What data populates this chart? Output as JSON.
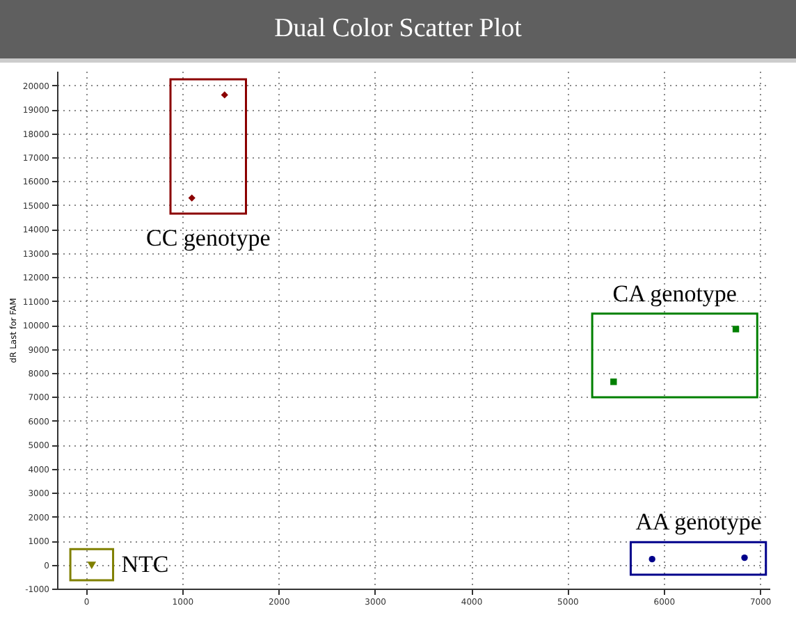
{
  "chart_data": {
    "type": "scatter",
    "title": "Dual Color Scatter Plot",
    "ylabel": "dR Last for FAM",
    "xlim": [
      -300,
      7100
    ],
    "ylim": [
      -1000,
      20600
    ],
    "xticks": [
      0,
      1000,
      2000,
      3000,
      4000,
      5000,
      6000,
      7000
    ],
    "yticks": [
      -1000,
      0,
      1000,
      2000,
      3000,
      4000,
      5000,
      6000,
      7000,
      8000,
      9000,
      10000,
      11000,
      12000,
      13000,
      14000,
      15000,
      16000,
      17000,
      18000,
      19000,
      20000
    ],
    "grid": true,
    "series": [
      {
        "color": "#8b0000",
        "marker": "diamond",
        "x": [
          1100,
          1440
        ],
        "values": [
          15300,
          19600
        ]
      },
      {
        "color": "#008000",
        "marker": "square",
        "x": [
          5480,
          6750
        ],
        "values": [
          7630,
          9830
        ]
      },
      {
        "color": "#00008b",
        "marker": "circle",
        "x": [
          5880,
          6840
        ],
        "values": [
          230,
          290
        ]
      },
      {
        "color": "#808000",
        "marker": "triangle",
        "x": [
          60
        ],
        "values": [
          0
        ]
      }
    ],
    "annotations": [
      "CC genotype",
      "CA genotype",
      "AA genotype",
      "NTC"
    ]
  }
}
